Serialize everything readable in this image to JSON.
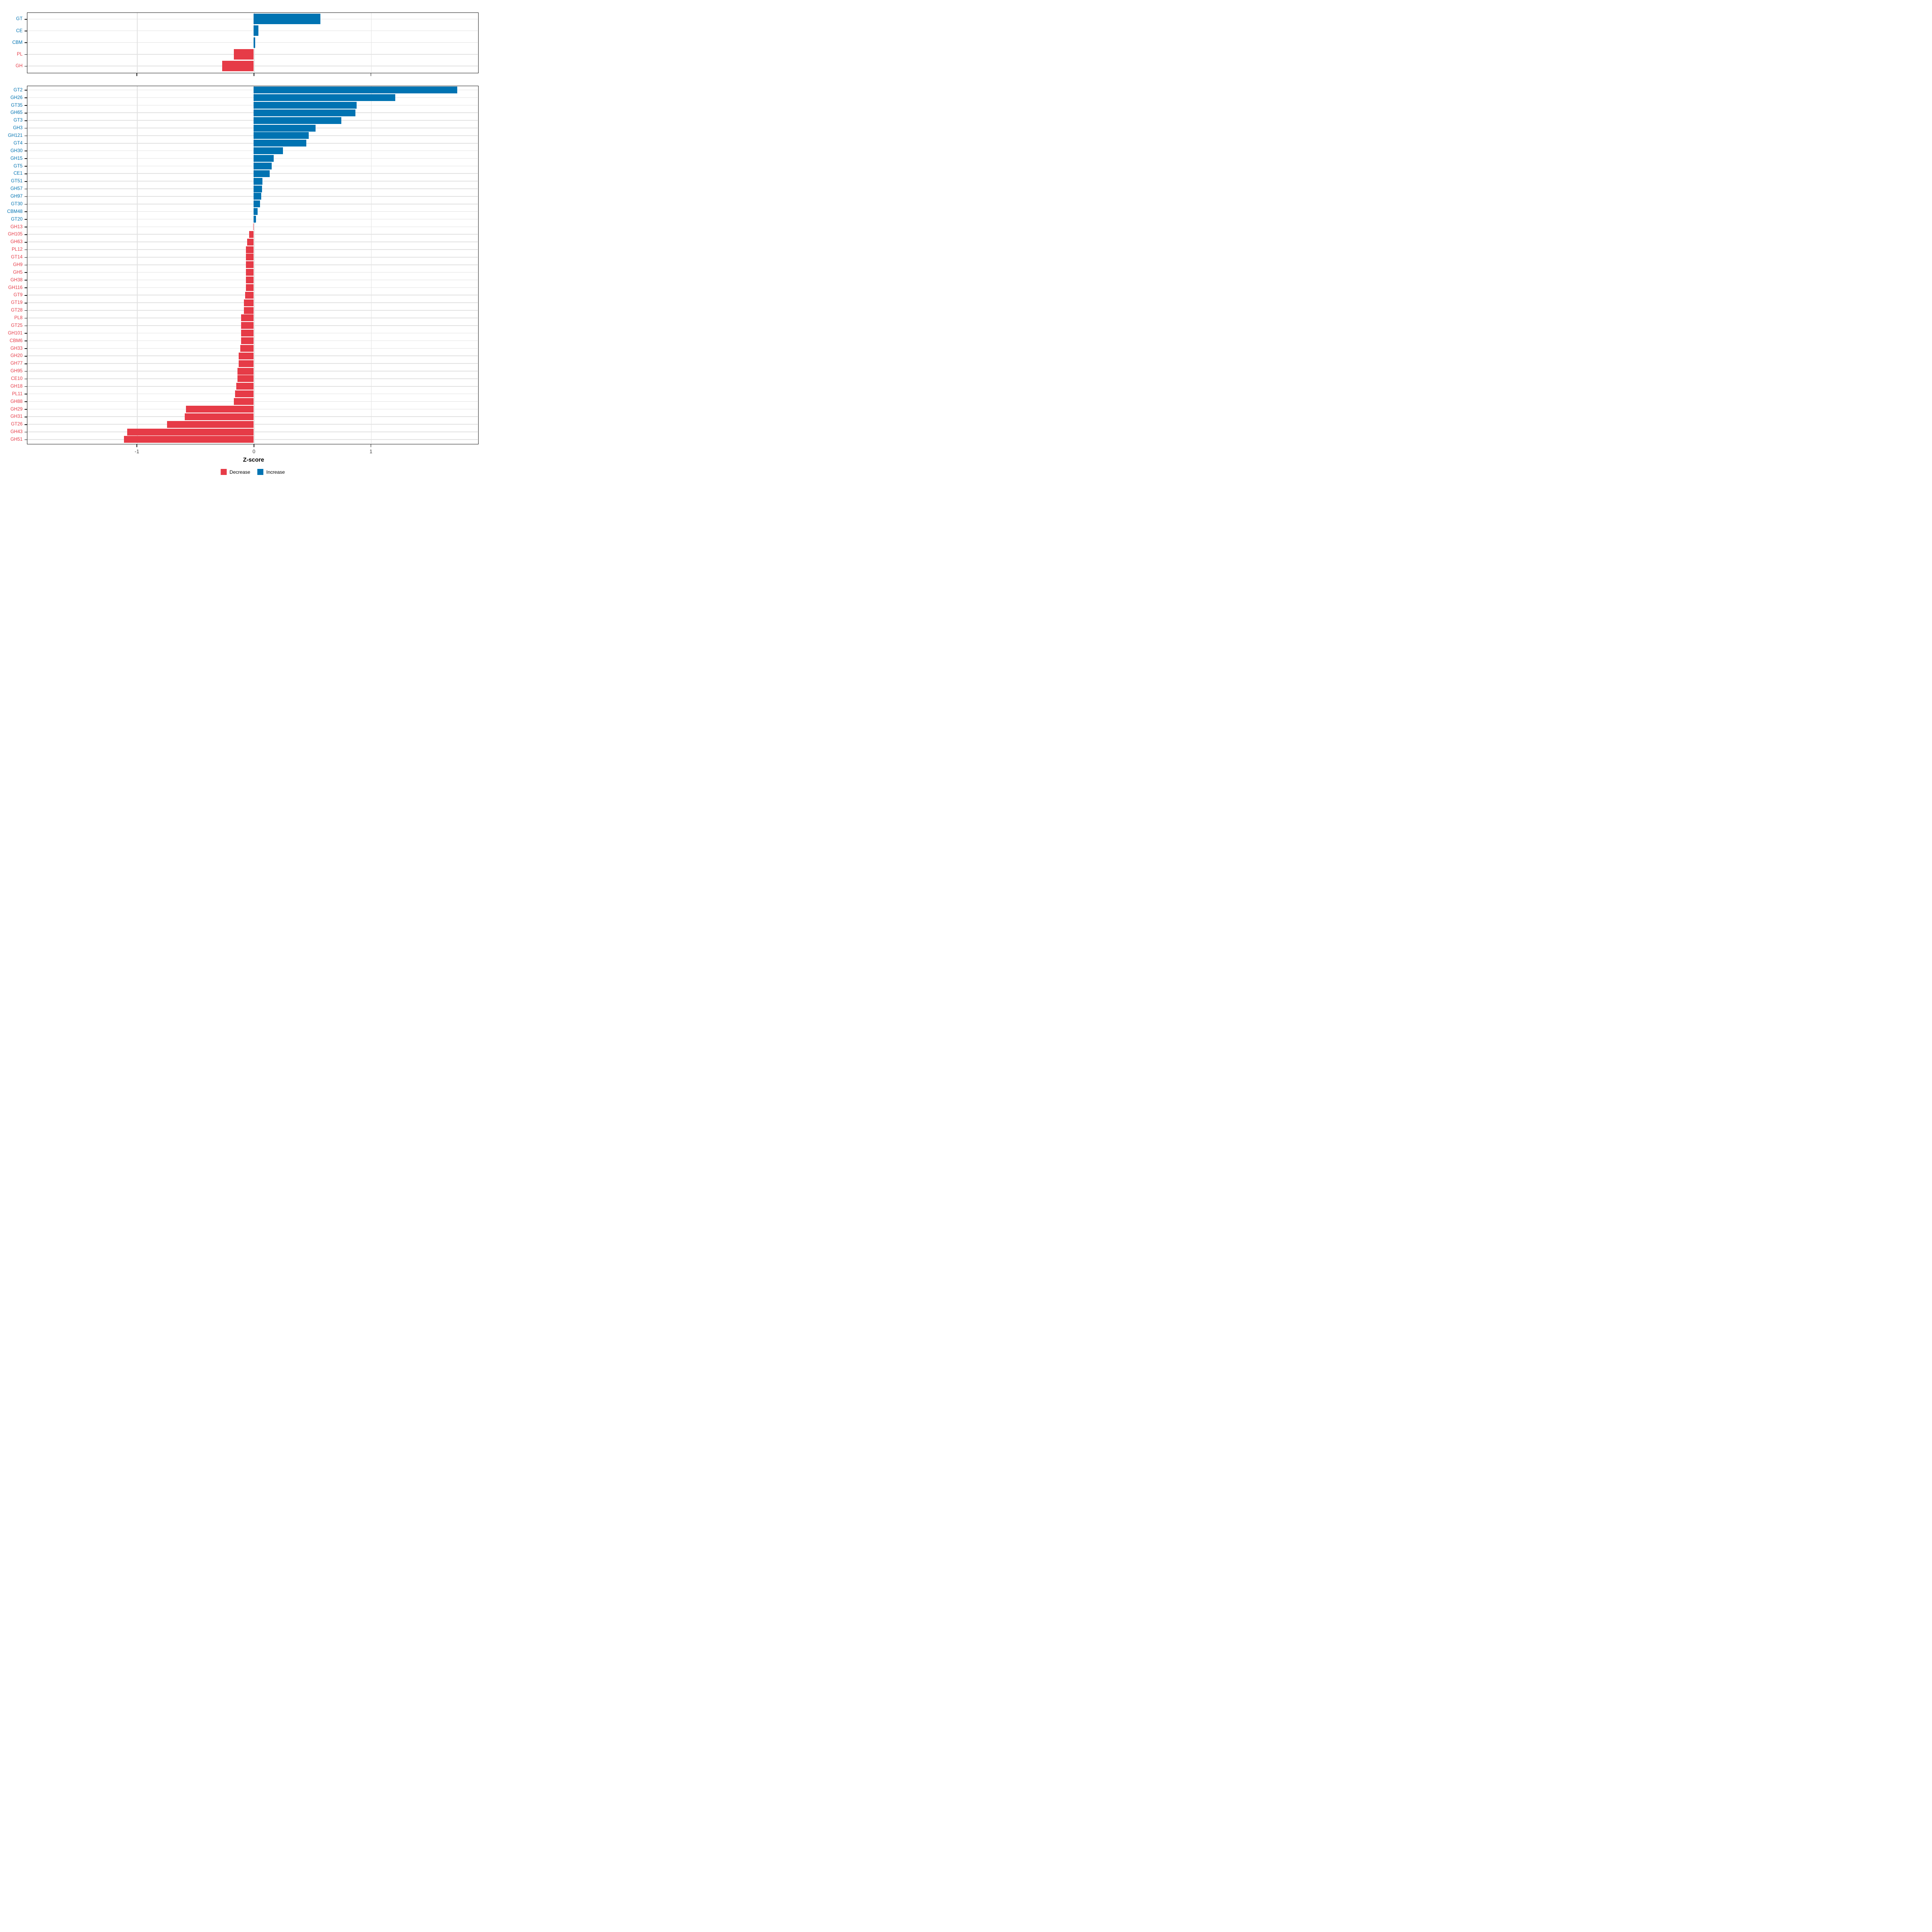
{
  "axis": {
    "label": "Z-score",
    "tick_labels": [
      "-1",
      "0",
      "1"
    ],
    "tick_values": [
      -1,
      0,
      1
    ],
    "range": [
      -1.94,
      1.92
    ]
  },
  "legend": {
    "entries": [
      {
        "label": "Decrease",
        "color": "#e63b47"
      },
      {
        "label": "Increase",
        "color": "#0073b2"
      }
    ]
  },
  "colors": {
    "increase": "#0073b2",
    "decrease": "#e63b47",
    "gridline": "#e2e2e2",
    "panel_border": "#1a1a1a"
  },
  "chart_data": [
    {
      "type": "bar",
      "orientation": "horizontal",
      "panel": "cazyme-class",
      "title": "",
      "xlabel": "Z-score",
      "categories": [
        "GT",
        "CE",
        "CBM",
        "PL",
        "GH"
      ],
      "values": [
        0.57,
        0.04,
        0.012,
        -0.17,
        -0.27
      ],
      "xlim": [
        -1.94,
        1.92
      ],
      "grid": true,
      "legend_position": "none"
    },
    {
      "type": "bar",
      "orientation": "horizontal",
      "panel": "cazyme-family",
      "title": "",
      "xlabel": "Z-score",
      "categories": [
        "GT2",
        "GH26",
        "GT35",
        "GH65",
        "GT3",
        "GH3",
        "GH121",
        "GT4",
        "GH30",
        "GH15",
        "GT5",
        "CE1",
        "GT51",
        "GH57",
        "GH97",
        "GT30",
        "CBM48",
        "GT20",
        "GH13",
        "GH105",
        "GH63",
        "PL12",
        "GT14",
        "GH9",
        "GH5",
        "GH38",
        "GH116",
        "GT9",
        "GT19",
        "GT28",
        "PL8",
        "GT25",
        "GH101",
        "CBM6",
        "GH33",
        "GH20",
        "GH77",
        "GH95",
        "CE10",
        "GH18",
        "PL11",
        "GH88",
        "GH29",
        "GH31",
        "GT26",
        "GH43",
        "GH51"
      ],
      "values": [
        1.74,
        1.21,
        0.88,
        0.87,
        0.75,
        0.53,
        0.47,
        0.45,
        0.25,
        0.17,
        0.155,
        0.135,
        0.075,
        0.07,
        0.065,
        0.055,
        0.035,
        0.018,
        -0.004,
        -0.04,
        -0.055,
        -0.065,
        -0.068,
        -0.068,
        -0.068,
        -0.068,
        -0.068,
        -0.075,
        -0.083,
        -0.085,
        -0.108,
        -0.108,
        -0.108,
        -0.108,
        -0.115,
        -0.127,
        -0.128,
        -0.138,
        -0.139,
        -0.148,
        -0.158,
        -0.17,
        -0.58,
        -0.59,
        -0.74,
        -1.08,
        -1.11
      ],
      "xlim": [
        -1.94,
        1.92
      ],
      "grid": true,
      "legend_position": "bottom"
    }
  ]
}
